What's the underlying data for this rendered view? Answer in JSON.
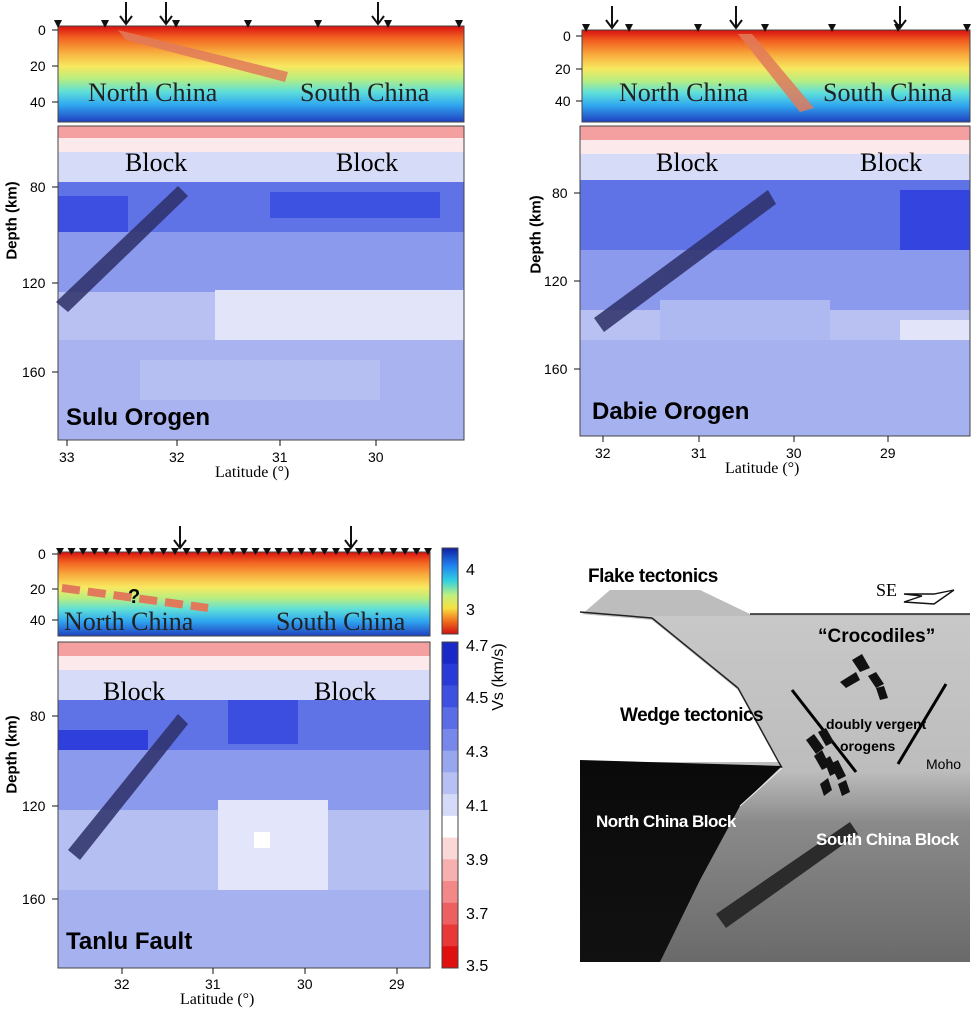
{
  "panels": [
    {
      "id": "sulu",
      "title": "Sulu Orogen",
      "crust_left_label": "North China",
      "crust_right_label": "South China",
      "mantle_left_label": "Block",
      "mantle_right_label": "Block",
      "crust_depth_ticks": [
        "0",
        "20",
        "40"
      ],
      "mantle_depth_ticks": [
        "80",
        "120",
        "160"
      ],
      "ylabel": "Depth (km)",
      "xlabel": "Latitude (°)",
      "lat_ticks": [
        "33",
        "32",
        "31",
        "30"
      ]
    },
    {
      "id": "dabie",
      "title": "Dabie Orogen",
      "crust_left_label": "North China",
      "crust_right_label": "South China",
      "mantle_left_label": "Block",
      "mantle_right_label": "Block",
      "crust_depth_ticks": [
        "0",
        "20",
        "40"
      ],
      "mantle_depth_ticks": [
        "80",
        "120",
        "160"
      ],
      "ylabel": "Depth (km)",
      "xlabel": "Latitude (°)",
      "lat_ticks": [
        "32",
        "31",
        "30",
        "29"
      ]
    },
    {
      "id": "tanlu",
      "title": "Tanlu Fault",
      "crust_left_label": "North China",
      "crust_right_label": "South China",
      "mantle_left_label": "Block",
      "mantle_right_label": "Block",
      "question_mark": "?",
      "crust_depth_ticks": [
        "0",
        "20",
        "40"
      ],
      "mantle_depth_ticks": [
        "80",
        "120",
        "160"
      ],
      "ylabel": "Depth (km)",
      "xlabel": "Latitude (°)",
      "lat_ticks": [
        "32",
        "31",
        "30",
        "29"
      ]
    }
  ],
  "colorbar_crust": {
    "ticks": [
      "4",
      "3"
    ]
  },
  "colorbar_mantle": {
    "label": "Vs (km/s)",
    "ticks": [
      "4.7",
      "4.5",
      "4.3",
      "4.1",
      "3.9",
      "3.7",
      "3.5"
    ]
  },
  "cartoon": {
    "flake": "Flake tectonics",
    "direction": "SE",
    "crocodiles": "“Crocodiles”",
    "wedge": "Wedge tectonics",
    "doubly": "doubly vergent",
    "orogens": "orogens",
    "moho": "Moho",
    "ncb": "North China Block",
    "scb": "South China Block"
  },
  "colors": {
    "slab_crust": "#e07050",
    "slab_mantle": "#2b2f66",
    "mantle_dark": "#2a3ff0",
    "mantle_light": "#e6e8fa"
  }
}
